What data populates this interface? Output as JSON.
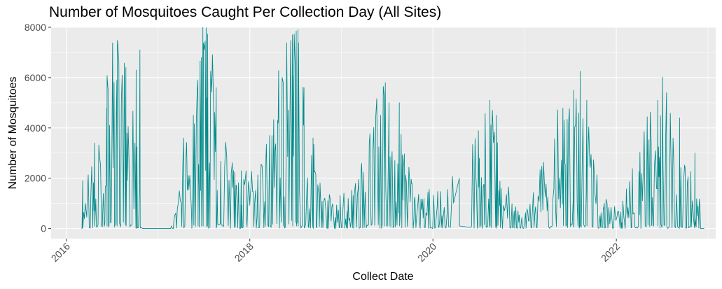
{
  "chart_data": {
    "type": "line",
    "title": "Number of Mosquitoes Caught Per Collection Day (All Sites)",
    "xlabel": "Collect Date",
    "ylabel": "Number of Mosquitoes",
    "xlim": [
      "2015-11-01",
      "2023-02-01"
    ],
    "ylim": [
      -400,
      8000
    ],
    "x_ticks": [
      {
        "date": "2016-01-01",
        "label": "2016"
      },
      {
        "date": "2018-01-01",
        "label": "2018"
      },
      {
        "date": "2020-01-01",
        "label": "2020"
      },
      {
        "date": "2022-01-01",
        "label": "2022"
      }
    ],
    "y_ticks": [
      0,
      2000,
      4000,
      6000,
      8000
    ],
    "grid": true,
    "colors": {
      "series": "#008b8b",
      "panel": "#ebebeb",
      "grid_major": "#ffffff"
    },
    "series": [
      {
        "approximate": true,
        "points": [
          [
            "2016-03-01",
            100
          ],
          [
            "2016-04-01",
            1500
          ],
          [
            "2016-05-01",
            2500
          ],
          [
            "2016-06-01",
            3500
          ],
          [
            "2016-07-01",
            4500
          ],
          [
            "2016-08-01",
            4800
          ],
          [
            "2016-09-01",
            3800
          ],
          [
            "2016-10-01",
            2500
          ],
          [
            "2016-11-01",
            50
          ],
          [
            "2017-01-01",
            60
          ],
          [
            "2017-03-01",
            100
          ],
          [
            "2017-04-01",
            1200
          ],
          [
            "2017-05-01",
            2500
          ],
          [
            "2017-06-01",
            4000
          ],
          [
            "2017-07-01",
            5000
          ],
          [
            "2017-08-01",
            4200
          ],
          [
            "2017-09-01",
            3200
          ],
          [
            "2017-10-01",
            2200
          ],
          [
            "2017-11-01",
            1600
          ],
          [
            "2017-12-01",
            1400
          ],
          [
            "2018-01-01",
            1300
          ],
          [
            "2018-02-01",
            1400
          ],
          [
            "2018-03-01",
            1800
          ],
          [
            "2018-04-01",
            3000
          ],
          [
            "2018-05-01",
            4500
          ],
          [
            "2018-06-01",
            5500
          ],
          [
            "2018-07-01",
            5500
          ],
          [
            "2018-08-01",
            3800
          ],
          [
            "2018-09-01",
            2400
          ],
          [
            "2018-10-01",
            1300
          ],
          [
            "2018-11-01",
            900
          ],
          [
            "2018-12-01",
            800
          ],
          [
            "2019-01-01",
            800
          ],
          [
            "2019-02-01",
            900
          ],
          [
            "2019-03-01",
            1200
          ],
          [
            "2019-04-01",
            2000
          ],
          [
            "2019-05-01",
            3000
          ],
          [
            "2019-06-01",
            3500
          ],
          [
            "2019-07-01",
            3300
          ],
          [
            "2019-08-01",
            2700
          ],
          [
            "2019-09-01",
            2100
          ],
          [
            "2019-10-01",
            1300
          ],
          [
            "2019-11-01",
            900
          ],
          [
            "2019-12-01",
            900
          ],
          [
            "2020-01-01",
            1000
          ],
          [
            "2020-02-01",
            1100
          ],
          [
            "2020-03-01",
            1300
          ],
          [
            "2020-04-01",
            1400
          ],
          [
            "2020-05-01",
            1600
          ],
          [
            "2020-06-01",
            1800
          ],
          [
            "2020-07-01",
            3000
          ],
          [
            "2020-08-01",
            3400
          ],
          [
            "2020-09-01",
            2600
          ],
          [
            "2020-10-01",
            1700
          ],
          [
            "2020-11-01",
            1000
          ],
          [
            "2020-12-01",
            500
          ],
          [
            "2021-01-01",
            400
          ],
          [
            "2021-02-01",
            800
          ],
          [
            "2021-03-01",
            1400
          ],
          [
            "2021-04-01",
            2000
          ],
          [
            "2021-05-01",
            2600
          ],
          [
            "2021-06-01",
            3000
          ],
          [
            "2021-07-01",
            3300
          ],
          [
            "2021-08-01",
            3300
          ],
          [
            "2021-09-01",
            2800
          ],
          [
            "2021-10-01",
            1700
          ],
          [
            "2021-11-01",
            900
          ],
          [
            "2021-12-01",
            600
          ],
          [
            "2022-01-01",
            500
          ],
          [
            "2022-02-01",
            800
          ],
          [
            "2022-03-01",
            1300
          ],
          [
            "2022-04-01",
            1900
          ],
          [
            "2022-05-01",
            2600
          ],
          [
            "2022-06-01",
            3200
          ],
          [
            "2022-07-01",
            3500
          ],
          [
            "2022-08-01",
            3300
          ],
          [
            "2022-09-01",
            2600
          ],
          [
            "2022-10-01",
            1900
          ],
          [
            "2022-11-01",
            1300
          ],
          [
            "2022-12-01",
            700
          ]
        ],
        "peaks": [
          [
            "2016-03-06",
            1900
          ],
          [
            "2016-04-22",
            3400
          ],
          [
            "2016-06-10",
            4800
          ],
          [
            "2016-07-20",
            5900
          ],
          [
            "2016-08-25",
            6400
          ],
          [
            "2016-10-05",
            6300
          ],
          [
            "2016-10-20",
            7100
          ],
          [
            "2017-04-12",
            3600
          ],
          [
            "2017-06-08",
            5900
          ],
          [
            "2017-06-22",
            6800
          ],
          [
            "2017-06-28",
            8000
          ],
          [
            "2017-07-15",
            5200
          ],
          [
            "2017-08-20",
            5600
          ],
          [
            "2017-11-28",
            2300
          ],
          [
            "2018-05-14",
            5800
          ],
          [
            "2018-06-20",
            7700
          ],
          [
            "2018-07-05",
            7850
          ],
          [
            "2018-07-12",
            7900
          ],
          [
            "2018-08-05",
            5600
          ],
          [
            "2018-09-10",
            3600
          ],
          [
            "2019-06-20",
            5300
          ],
          [
            "2019-07-10",
            5000
          ],
          [
            "2019-08-20",
            5000
          ],
          [
            "2020-04-15",
            2000
          ],
          [
            "2020-08-15",
            5100
          ],
          [
            "2020-09-10",
            4500
          ],
          [
            "2021-07-15",
            5500
          ],
          [
            "2021-08-10",
            6250
          ],
          [
            "2021-09-05",
            5100
          ],
          [
            "2022-06-15",
            5100
          ],
          [
            "2022-07-20",
            5400
          ],
          [
            "2022-09-10",
            4400
          ],
          [
            "2022-11-10",
            3000
          ]
        ]
      }
    ]
  }
}
